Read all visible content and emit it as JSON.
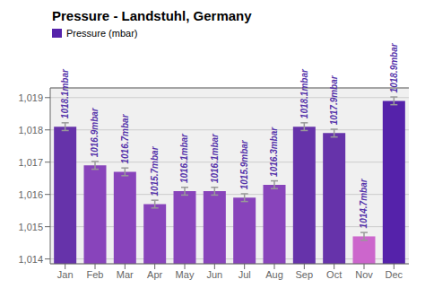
{
  "chart_data": {
    "type": "bar",
    "title": "Pressure - Landstuhl, Germany",
    "categories": [
      "Jan",
      "Feb",
      "Mar",
      "Apr",
      "May",
      "Jun",
      "Jul",
      "Aug",
      "Sep",
      "Oct",
      "Nov",
      "Dec"
    ],
    "series": [
      {
        "name": "Pressure (mbar)",
        "color": "#5522AA",
        "colors": [
          "#6633AA",
          "#8844BB",
          "#8844BB",
          "#8844BB",
          "#8844BB",
          "#8844BB",
          "#8844BB",
          "#8844BB",
          "#6633AA",
          "#6633AA",
          "#CC66CC",
          "#5522AA"
        ],
        "values": [
          1018.1,
          1016.9,
          1016.7,
          1015.7,
          1016.1,
          1016.1,
          1015.9,
          1016.3,
          1018.1,
          1017.9,
          1014.7,
          1018.9
        ],
        "value_labels": [
          "1018.1mbar",
          "1016.9mbar",
          "1016.7mbar",
          "1015.7mbar",
          "1016.1mbar",
          "1016.1mbar",
          "1015.9mbar",
          "1016.3mbar",
          "1018.1mbar",
          "1017.9mbar",
          "1014.7mbar",
          "1018.9mbar"
        ],
        "error": 0.12
      }
    ],
    "ylim": [
      1013.85,
      1019.3
    ],
    "yticks": [
      {
        "value": 1014,
        "label": "1,014"
      },
      {
        "value": 1015,
        "label": "1,015"
      },
      {
        "value": 1016,
        "label": "1,016"
      },
      {
        "value": 1017,
        "label": "1,017"
      },
      {
        "value": 1018,
        "label": "1,018"
      },
      {
        "value": 1019,
        "label": "1,019"
      }
    ],
    "grid": true,
    "legend": "upper left",
    "data_labels": true
  }
}
